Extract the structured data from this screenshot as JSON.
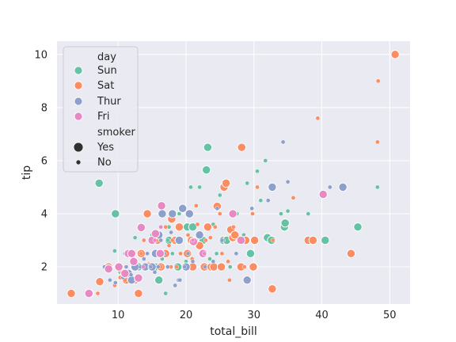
{
  "chart_data": {
    "type": "scatter",
    "xlabel": "total_bill",
    "ylabel": "tip",
    "xlim": [
      1.0,
      53.0
    ],
    "ylim": [
      0.6,
      10.5
    ],
    "xticks": [
      10,
      20,
      30,
      40,
      50
    ],
    "yticks": [
      2,
      4,
      6,
      8,
      10
    ],
    "grid": true,
    "legend_position": "upper-left",
    "legend": {
      "hue_title": "day",
      "hue_items": [
        {
          "label": "Sun",
          "color": "#66c2a5"
        },
        {
          "label": "Sat",
          "color": "#fc8d62"
        },
        {
          "label": "Thur",
          "color": "#8da0cb"
        },
        {
          "label": "Fri",
          "color": "#e78ac3"
        }
      ],
      "size_title": "smoker",
      "size_items": [
        {
          "label": "Yes",
          "size": "large"
        },
        {
          "label": "No",
          "size": "small"
        }
      ]
    },
    "series": [
      {
        "day": "Sun",
        "smoker": "Yes",
        "x": [
          7.2,
          9.6,
          13.0,
          14.0,
          15.5,
          16.0,
          17.5,
          18.8,
          20.2,
          21.0,
          22.5,
          23.2,
          23.0,
          25.5,
          26.0,
          29.5,
          30.0,
          32.0,
          32.6,
          34.5,
          34.6,
          40.5,
          45.3
        ],
        "y": [
          5.15,
          4.0,
          2.0,
          2.0,
          2.0,
          1.5,
          3.0,
          2.0,
          3.5,
          3.5,
          3.0,
          6.5,
          5.65,
          3.0,
          3.0,
          2.5,
          2.0,
          3.1,
          3.0,
          3.5,
          3.65,
          3.0,
          3.5
        ]
      },
      {
        "day": "Sun",
        "smoker": "No",
        "x": [
          9.5,
          10.3,
          11.0,
          12.5,
          13.5,
          14.5,
          15.0,
          16.5,
          17.0,
          17.5,
          18.0,
          19.0,
          20.0,
          20.7,
          21.5,
          22.0,
          23.5,
          24.0,
          25.0,
          25.5,
          26.5,
          27.5,
          28.5,
          29.0,
          30.5,
          31.0,
          31.7,
          34.0,
          35.0,
          38.0,
          48.2,
          17.3,
          20.5,
          24.5
        ],
        "y": [
          2.6,
          1.8,
          2.5,
          3.1,
          2.5,
          2.0,
          3.2,
          2.3,
          1.0,
          3.5,
          2.5,
          4.0,
          2.2,
          5.0,
          3.0,
          5.0,
          2.3,
          3.6,
          4.7,
          3.0,
          2.0,
          4.0,
          3.2,
          5.15,
          5.6,
          4.5,
          6.0,
          4.0,
          4.1,
          4.0,
          5.0,
          3.0,
          4.0,
          2.5
        ]
      },
      {
        "day": "Sat",
        "smoker": "Yes",
        "x": [
          3.1,
          5.8,
          7.3,
          8.6,
          10.1,
          11.2,
          12.5,
          13.0,
          13.4,
          14.3,
          15.0,
          15.8,
          16.4,
          17.0,
          17.9,
          18.4,
          19.0,
          20.2,
          20.8,
          22.0,
          22.7,
          23.2,
          23.7,
          24.1,
          25.2,
          25.6,
          25.9,
          26.6,
          26.9,
          28.1,
          28.2,
          28.8,
          30.1,
          32.7,
          38.0,
          38.7,
          44.3,
          50.8,
          29.9,
          24.6,
          27.2,
          16.3,
          21.0
        ],
        "y": [
          1.0,
          1.0,
          1.44,
          2.0,
          2.0,
          1.5,
          1.5,
          1.0,
          2.5,
          4.0,
          2.0,
          3.0,
          2.0,
          2.5,
          3.8,
          3.0,
          3.5,
          2.5,
          3.0,
          2.8,
          2.0,
          3.5,
          2.0,
          2.0,
          2.0,
          5.0,
          5.15,
          3.4,
          3.1,
          2.0,
          6.5,
          3.0,
          3.0,
          1.17,
          3.0,
          3.0,
          2.5,
          10.0,
          2.0,
          4.28,
          3.2,
          2.0,
          2.0
        ]
      },
      {
        "day": "Sat",
        "smoker": "No",
        "x": [
          7.0,
          8.5,
          9.5,
          10.3,
          10.6,
          11.0,
          12.0,
          12.7,
          13.4,
          13.8,
          14.5,
          15.2,
          15.7,
          16.3,
          17.0,
          17.5,
          18.0,
          18.6,
          19.2,
          19.9,
          20.3,
          20.9,
          21.5,
          22.2,
          22.9,
          23.6,
          24.3,
          25.0,
          25.3,
          26.4,
          27.0,
          28.0,
          28.6,
          29.8,
          30.5,
          32.8,
          35.8,
          39.4,
          48.3,
          48.2,
          26.2,
          21.7,
          17.8
        ],
        "y": [
          1.0,
          2.0,
          1.3,
          1.6,
          1.8,
          1.5,
          2.2,
          2.0,
          2.5,
          3.0,
          2.1,
          2.5,
          3.0,
          2.0,
          3.5,
          2.8,
          3.0,
          2.0,
          2.5,
          2.0,
          3.2,
          2.3,
          4.3,
          2.5,
          3.0,
          3.1,
          3.5,
          4.0,
          2.5,
          1.5,
          3.5,
          3.0,
          2.0,
          4.0,
          5.0,
          3.0,
          4.6,
          7.6,
          9.0,
          6.7,
          2.2,
          3.6,
          2.0
        ]
      },
      {
        "day": "Thur",
        "smoker": "Yes",
        "x": [
          11.5,
          12.5,
          14.0,
          15.0,
          16.0,
          16.5,
          18.0,
          19.0,
          19.5,
          20.0,
          20.5,
          22.0,
          29.0,
          32.7,
          43.1,
          12.0,
          15.5
        ],
        "y": [
          1.75,
          2.0,
          2.0,
          2.0,
          3.2,
          4.0,
          4.0,
          3.0,
          4.2,
          2.0,
          4.0,
          3.2,
          1.5,
          5.0,
          5.0,
          1.5,
          2.5
        ]
      },
      {
        "day": "Thur",
        "smoker": "No",
        "x": [
          8.0,
          8.8,
          9.6,
          10.1,
          10.7,
          11.2,
          11.9,
          12.4,
          12.7,
          13.3,
          13.8,
          14.3,
          14.8,
          15.4,
          15.9,
          16.3,
          16.8,
          17.3,
          17.8,
          18.4,
          18.9,
          19.8,
          20.3,
          21.0,
          22.8,
          24.0,
          25.3,
          26.7,
          27.4,
          28.2,
          29.7,
          32.1,
          34.3,
          35.0,
          41.2,
          24.6,
          19.1
        ],
        "y": [
          2.0,
          1.5,
          1.4,
          2.0,
          1.6,
          2.0,
          1.7,
          2.5,
          1.5,
          2.0,
          2.3,
          2.5,
          2.0,
          1.8,
          2.0,
          3.0,
          2.5,
          2.0,
          3.3,
          1.3,
          1.5,
          2.0,
          2.5,
          2.2,
          2.0,
          2.2,
          3.0,
          4.0,
          2.5,
          3.0,
          4.2,
          4.5,
          6.7,
          5.2,
          5.0,
          4.2,
          1.5
        ]
      },
      {
        "day": "Fri",
        "smoker": "Yes",
        "x": [
          5.7,
          8.6,
          10.1,
          11.0,
          11.5,
          12.3,
          13.0,
          13.4,
          15.0,
          15.5,
          16.2,
          16.4,
          21.1,
          22.5,
          26.9,
          28.1,
          40.2,
          12.0
        ],
        "y": [
          1.0,
          1.92,
          2.0,
          1.75,
          2.5,
          2.2,
          1.58,
          3.48,
          3.0,
          3.25,
          2.5,
          4.3,
          2.95,
          2.5,
          4.0,
          3.0,
          4.73,
          2.5
        ]
      },
      {
        "day": "Fri",
        "smoker": "No",
        "x": [
          13.7,
          15.4,
          16.3,
          22.7,
          21.0
        ],
        "y": [
          2.0,
          3.0,
          3.5,
          2.5,
          3.0
        ]
      }
    ]
  }
}
